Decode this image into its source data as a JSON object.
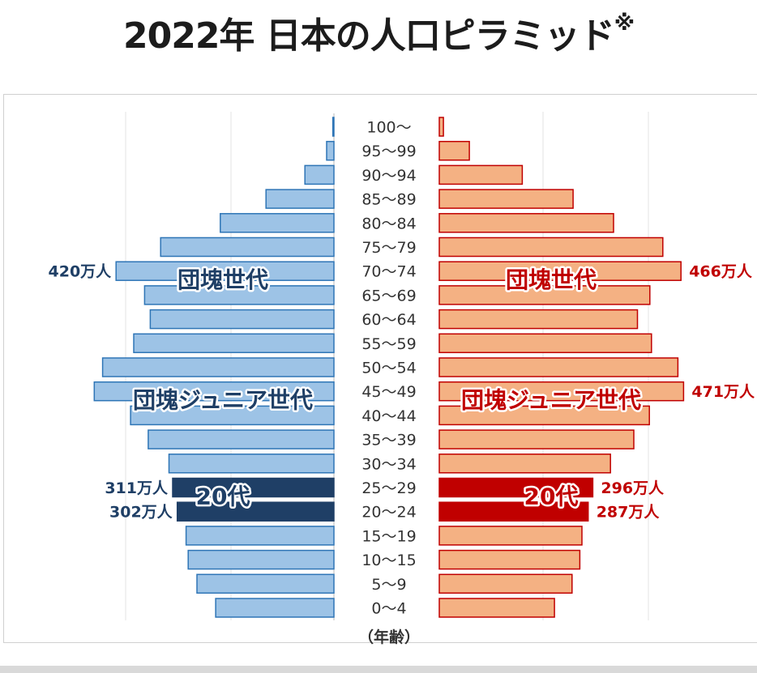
{
  "title": "2022年 日本の人口ピラミッド",
  "title_mark": "※",
  "chart_data": {
    "type": "bar",
    "orientation": "horizontal-pyramid",
    "age_axis_label": "（年齢）",
    "age_groups": [
      "100～",
      "95～99",
      "90～94",
      "85～89",
      "80～84",
      "75～79",
      "70～74",
      "65～69",
      "60～64",
      "55～59",
      "50～54",
      "45～49",
      "40～44",
      "35～39",
      "30～34",
      "25～29",
      "20～24",
      "15～19",
      "10～15",
      "5～9",
      "0～4"
    ],
    "series": [
      {
        "side": "left",
        "color": "#9dc3e6",
        "highlight_color": "#1f3f66",
        "values": [
          2,
          14,
          56,
          131,
          219,
          334,
          420,
          365,
          354,
          386,
          446,
          462,
          392,
          358,
          318,
          311,
          302,
          285,
          281,
          264,
          228
        ]
      },
      {
        "side": "right",
        "color": "#f4b183",
        "highlight_color": "#c00000",
        "values": [
          8,
          58,
          160,
          258,
          336,
          431,
          466,
          406,
          382,
          409,
          460,
          471,
          405,
          375,
          330,
          296,
          287,
          275,
          271,
          256,
          222
        ]
      }
    ],
    "highlight_groups": [
      "25～29",
      "20～24"
    ],
    "value_labels": [
      {
        "side": "left",
        "group": "70～74",
        "text": "420万人"
      },
      {
        "side": "right",
        "group": "70～74",
        "text": "466万人"
      },
      {
        "side": "right",
        "group": "45～49",
        "text": "471万人"
      },
      {
        "side": "left",
        "group": "25～29",
        "text": "311万人"
      },
      {
        "side": "left",
        "group": "20～24",
        "text": "302万人"
      },
      {
        "side": "right",
        "group": "25～29",
        "text": "296万人"
      },
      {
        "side": "right",
        "group": "20～24",
        "text": "287万人"
      }
    ],
    "annotations": [
      {
        "side": "left",
        "group": "70～74",
        "text": "団塊世代"
      },
      {
        "side": "right",
        "group": "70～74",
        "text": "団塊世代"
      },
      {
        "side": "left",
        "group": "45～49",
        "text": "団塊ジュニア世代"
      },
      {
        "side": "right",
        "group": "45～49",
        "text": "団塊ジュニア世代"
      },
      {
        "side": "left",
        "group": "25～29",
        "text": "20代"
      },
      {
        "side": "right",
        "group": "25～29",
        "text": "20代"
      }
    ]
  }
}
